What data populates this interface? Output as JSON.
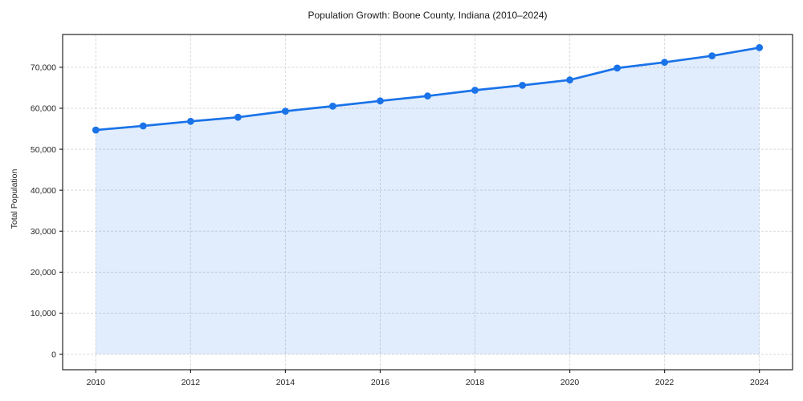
{
  "chart_data": {
    "type": "area",
    "title": "Population Growth: Boone County, Indiana (2010–2024)",
    "xlabel": "",
    "ylabel": "Total Population",
    "x": [
      2010,
      2011,
      2012,
      2013,
      2014,
      2015,
      2016,
      2017,
      2018,
      2019,
      2020,
      2021,
      2022,
      2023,
      2024
    ],
    "series": [
      {
        "name": "Total Population",
        "values": [
          54700,
          55700,
          56800,
          57800,
          59300,
          60500,
          61800,
          63000,
          64400,
          65600,
          66900,
          69800,
          71200,
          72800,
          74800
        ]
      }
    ],
    "xticks": [
      2010,
      2012,
      2014,
      2016,
      2018,
      2020,
      2022,
      2024
    ],
    "yticks": [
      0,
      10000,
      20000,
      30000,
      40000,
      50000,
      60000,
      70000
    ],
    "xlim": [
      2009.3,
      2024.7
    ],
    "ylim": [
      -3800,
      78000
    ],
    "grid": true,
    "legend_position": "none",
    "marker": "circle",
    "fill_baseline": 0,
    "colors": {
      "line": "#1a73e8",
      "marker": "#1a73e8",
      "fill": "rgba(26,115,232,0.13)",
      "grid": "#d9d9d9",
      "spine": "#262626",
      "text": "#262626"
    }
  }
}
